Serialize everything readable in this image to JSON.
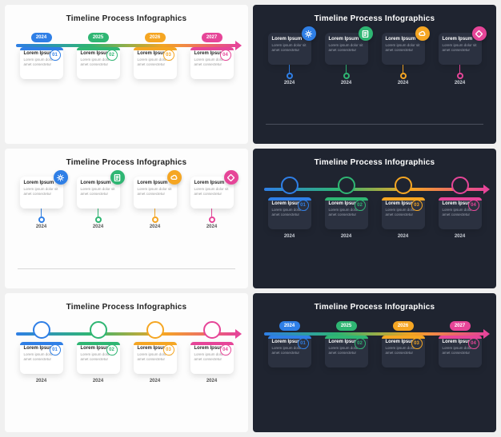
{
  "common": {
    "title": "Timeline Process Infographics",
    "body": "Lorem ipsum dolor sit amet consectetur",
    "head": "Lorem Ipsum"
  },
  "colors": {
    "blue": "#2f7fe6",
    "green": "#2fb673",
    "orange": "#f5a623",
    "pink": "#e64598"
  },
  "panelColors": {
    "light_bg": "#fdfdfd",
    "dark_bg": "#1f2430",
    "light_card": "#ffffff",
    "dark_card": "#2b3140"
  },
  "icons": [
    "gear",
    "doc",
    "cloud",
    "diamond"
  ],
  "years": [
    "2024",
    "2025",
    "2026",
    "2027"
  ],
  "yearsRepeat": [
    "2024",
    "2024",
    "2024",
    "2024"
  ],
  "nums": [
    "01",
    "02",
    "03",
    "04"
  ],
  "panels": [
    {
      "id": "p1",
      "theme": "light",
      "variant": "arrow_top_years_on_axis_cards_below_with_badge",
      "years": "years"
    },
    {
      "id": "p2",
      "theme": "dark",
      "variant": "cards_top_with_cornericon_pins_to_bottom_baseline",
      "years": "yearsRepeat"
    },
    {
      "id": "p3",
      "theme": "light",
      "variant": "cards_top_with_cornericon_pins_to_bottom_baseline",
      "years": "yearsRepeat"
    },
    {
      "id": "p4",
      "theme": "dark",
      "variant": "arrow_top_icons_on_axis_cards_below_with_badge_caption_years",
      "years": "yearsRepeat"
    },
    {
      "id": "p5",
      "theme": "light",
      "variant": "arrow_top_icons_on_axis_cards_below_with_badge_caption_years",
      "years": "yearsRepeat"
    },
    {
      "id": "p6",
      "theme": "dark",
      "variant": "arrow_top_years_on_axis_cards_below_with_badge",
      "years": "years"
    }
  ]
}
